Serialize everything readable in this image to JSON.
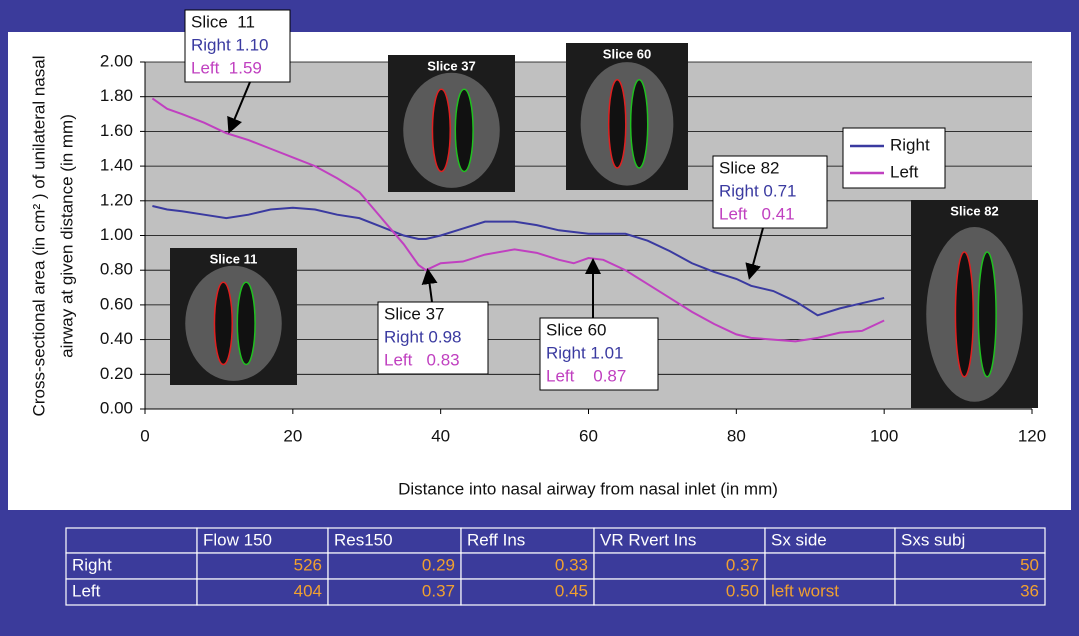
{
  "chart_data": {
    "type": "line",
    "y_label_lines": [
      "Cross-sectional area (in cm² ) of unilateral nasal",
      "airway at given distance (in mm)"
    ],
    "x_label": "Distance into nasal airway from nasal inlet (in mm)",
    "x": [
      1,
      3,
      5,
      8,
      11,
      14,
      17,
      20,
      23,
      26,
      29,
      32,
      35,
      37,
      38,
      40,
      43,
      46,
      50,
      53,
      56,
      58,
      60,
      62,
      65,
      68,
      71,
      74,
      77,
      80,
      82,
      85,
      88,
      91,
      94,
      97,
      100
    ],
    "series": [
      {
        "name": "Right",
        "color": "#3a3aa0",
        "values": [
          1.17,
          1.15,
          1.14,
          1.12,
          1.1,
          1.12,
          1.15,
          1.16,
          1.15,
          1.12,
          1.1,
          1.05,
          1.0,
          0.98,
          0.98,
          1.0,
          1.04,
          1.08,
          1.08,
          1.06,
          1.03,
          1.02,
          1.01,
          1.01,
          1.01,
          0.97,
          0.91,
          0.84,
          0.79,
          0.75,
          0.71,
          0.68,
          0.62,
          0.54,
          0.58,
          0.61,
          0.64
        ]
      },
      {
        "name": "Left",
        "color": "#c040c0",
        "values": [
          1.79,
          1.73,
          1.7,
          1.65,
          1.59,
          1.55,
          1.5,
          1.45,
          1.4,
          1.33,
          1.25,
          1.1,
          0.95,
          0.83,
          0.8,
          0.84,
          0.85,
          0.89,
          0.92,
          0.9,
          0.86,
          0.84,
          0.87,
          0.86,
          0.8,
          0.72,
          0.64,
          0.56,
          0.49,
          0.43,
          0.41,
          0.4,
          0.39,
          0.41,
          0.44,
          0.45,
          0.51
        ]
      }
    ],
    "xlim": [
      0,
      120
    ],
    "xticks": [
      0,
      20,
      40,
      60,
      80,
      100,
      120
    ],
    "ylim": [
      0,
      2
    ],
    "yticks": [
      {
        "value": 0,
        "label": "0.00"
      },
      {
        "value": 0.2,
        "label": "0.20"
      },
      {
        "value": 0.4,
        "label": "0.40"
      },
      {
        "value": 0.6,
        "label": "0.60"
      },
      {
        "value": 0.8,
        "label": "0.80"
      },
      {
        "value": 1,
        "label": "1.00"
      },
      {
        "value": 1.2,
        "label": "1.20"
      },
      {
        "value": 1.4,
        "label": "1.40"
      },
      {
        "value": 1.6,
        "label": "1.60"
      },
      {
        "value": 1.8,
        "label": "1.80"
      },
      {
        "value": 2,
        "label": "2.00"
      }
    ],
    "grid": true,
    "legend": "right",
    "callouts": [
      {
        "slice": "Slice  11",
        "right": "Right 1.10",
        "left": "Left  1.59"
      },
      {
        "slice": "Slice 37",
        "right": "Right 0.98",
        "left": "Left   0.83"
      },
      {
        "slice": "Slice 60",
        "right": "Right 1.01",
        "left": "Left    0.87"
      },
      {
        "slice": "Slice 82",
        "right": "Right 0.71",
        "left": "Left   0.41"
      }
    ],
    "insets": [
      "Slice 11",
      "Slice 37",
      "Slice 60",
      "Slice 82"
    ]
  },
  "table": {
    "columns": [
      "Flow 150",
      "Res150",
      "Reff Ins",
      "VR Rvert Ins",
      "Sx side",
      "Sxs subj"
    ],
    "rows": [
      {
        "label": "Right",
        "cells": [
          "526",
          "0.29",
          "0.33",
          "0.37",
          null,
          "50"
        ]
      },
      {
        "label": "Left",
        "cells": [
          "404",
          "0.37",
          "0.45",
          "0.50",
          "left worst",
          "36"
        ]
      }
    ]
  }
}
